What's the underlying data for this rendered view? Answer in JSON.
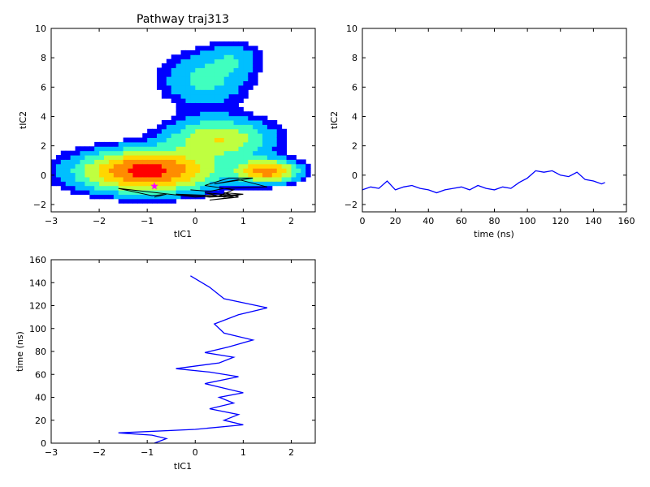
{
  "chart_data": [
    {
      "type": "heatmap",
      "title": "Pathway traj313",
      "xlabel": "tIC1",
      "ylabel": "tIC2",
      "xlim": [
        -3,
        2.5
      ],
      "ylim": [
        -2.5,
        10
      ],
      "xticks": [
        "−3",
        "−2",
        "−1",
        "0",
        "1",
        "2"
      ],
      "yticks": [
        "−2",
        "0",
        "2",
        "4",
        "6",
        "8",
        "10"
      ],
      "grid": false,
      "density_regions": [
        {
          "cx": -1.0,
          "cy": 0.3,
          "sx": 0.9,
          "sy": 0.9,
          "weight": 1.0
        },
        {
          "cx": 1.5,
          "cy": 0.3,
          "sx": 0.4,
          "sy": 0.5,
          "weight": 0.8
        },
        {
          "cx": 0.5,
          "cy": 2.5,
          "sx": 0.7,
          "sy": 0.9,
          "weight": 0.5
        },
        {
          "cx": 0.2,
          "cy": 6.5,
          "sx": 0.6,
          "sy": 1.2,
          "weight": 0.25
        },
        {
          "cx": 0.8,
          "cy": 8.0,
          "sx": 0.4,
          "sy": 0.8,
          "weight": 0.15
        }
      ],
      "colormap": [
        "#000080",
        "#0000ff",
        "#00bfff",
        "#40ffbf",
        "#bfff40",
        "#ffd700",
        "#ff8c00",
        "#ff0000"
      ],
      "overlay_color": "#000000",
      "marker": {
        "x": -0.85,
        "y": -0.75,
        "color": "#ff00ff"
      }
    },
    {
      "type": "line",
      "title": "",
      "xlabel": "time (ns)",
      "ylabel": "tIC2",
      "xlim": [
        0,
        160
      ],
      "ylim": [
        -2.5,
        10
      ],
      "xticks": [
        "0",
        "20",
        "40",
        "60",
        "80",
        "100",
        "120",
        "140",
        "160"
      ],
      "yticks": [
        "−2",
        "0",
        "2",
        "4",
        "6",
        "8",
        "10"
      ],
      "grid": false,
      "series": [
        {
          "color": "#0000ff",
          "x": [
            0,
            5,
            10,
            15,
            20,
            25,
            30,
            35,
            40,
            45,
            50,
            55,
            60,
            65,
            70,
            75,
            80,
            85,
            90,
            95,
            100,
            105,
            110,
            115,
            120,
            125,
            130,
            135,
            140,
            145,
            147
          ],
          "y": [
            -1.0,
            -0.8,
            -0.9,
            -0.4,
            -1.0,
            -0.8,
            -0.7,
            -0.9,
            -1.0,
            -1.2,
            -1.0,
            -0.9,
            -0.8,
            -1.0,
            -0.7,
            -0.9,
            -1.0,
            -0.8,
            -0.9,
            -0.5,
            -0.2,
            0.3,
            0.2,
            0.3,
            0.0,
            -0.1,
            0.2,
            -0.3,
            -0.4,
            -0.6,
            -0.5
          ]
        }
      ]
    },
    {
      "type": "line",
      "title": "",
      "xlabel": "tIC1",
      "ylabel": "time (ns)",
      "xlim": [
        -3,
        2.5
      ],
      "ylim": [
        0,
        160
      ],
      "xticks": [
        "−3",
        "−2",
        "−1",
        "0",
        "1",
        "2"
      ],
      "yticks": [
        "0",
        "20",
        "40",
        "60",
        "80",
        "100",
        "120",
        "140",
        "160"
      ],
      "grid": false,
      "series": [
        {
          "color": "#0000ff",
          "x": [
            -0.85,
            -0.6,
            -0.9,
            -1.6,
            0.0,
            1.0,
            0.6,
            0.9,
            0.3,
            0.8,
            0.5,
            1.0,
            0.6,
            0.2,
            0.9,
            0.3,
            -0.4,
            0.5,
            0.8,
            0.2,
            0.7,
            1.2,
            0.6,
            0.4,
            0.9,
            1.5,
            0.6,
            0.3,
            -0.1
          ],
          "y": [
            0,
            4,
            7,
            9,
            12,
            16,
            20,
            25,
            30,
            35,
            40,
            44,
            48,
            52,
            58,
            62,
            65,
            70,
            75,
            79,
            84,
            90,
            96,
            104,
            112,
            118,
            126,
            136,
            146
          ]
        }
      ]
    }
  ]
}
